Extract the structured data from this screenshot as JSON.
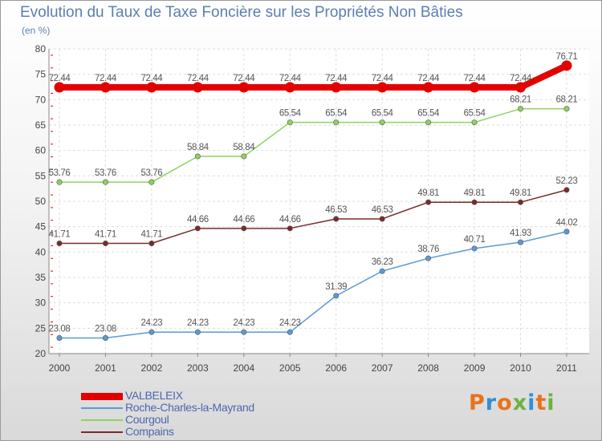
{
  "title": "Evolution du Taux de Taxe Foncière sur les Propriétés Non Bâties",
  "subtitle": "(en %)",
  "logo": {
    "text": "Proxiti",
    "colors": [
      "#e8731a",
      "#2f8fd6",
      "#e8731a",
      "#6cb33f",
      "#2f8fd6",
      "#e8731a",
      "#6cb33f"
    ]
  },
  "chart_data": {
    "type": "line",
    "x": [
      "2000",
      "2001",
      "2002",
      "2003",
      "2004",
      "2005",
      "2006",
      "2007",
      "2008",
      "2009",
      "2010",
      "2011"
    ],
    "ylim": [
      20,
      80
    ],
    "yticks": [
      "20",
      "25",
      "30",
      "35",
      "40",
      "45",
      "50",
      "55",
      "60",
      "65",
      "70",
      "75",
      "80"
    ],
    "grid": true,
    "legend": "bottom-left",
    "series": [
      {
        "name": "VALBELEIX",
        "color": "#e30000",
        "values": [
          72.44,
          72.44,
          72.44,
          72.44,
          72.44,
          72.44,
          72.44,
          72.44,
          72.44,
          72.44,
          72.44,
          76.71
        ],
        "labels": [
          "72.44",
          "72.44",
          "72.44",
          "72.44",
          "72.44",
          "72.44",
          "72.44",
          "72.44",
          "72.44",
          "72.44",
          "72.44",
          "76.71"
        ]
      },
      {
        "name": "Roche-Charles-la-Mayrand",
        "color": "#5a9bd4",
        "values": [
          23.08,
          23.08,
          24.23,
          24.23,
          24.23,
          24.23,
          31.39,
          36.23,
          38.76,
          40.71,
          41.93,
          44.02
        ],
        "labels": [
          "23.08",
          "23.08",
          "24.23",
          "24.23",
          "24.23",
          "24.23",
          "31.39",
          "36.23",
          "38.76",
          "40.71",
          "41.93",
          "44.02"
        ]
      },
      {
        "name": "Courgoul",
        "color": "#8dd35f",
        "values": [
          53.76,
          53.76,
          53.76,
          58.84,
          58.84,
          65.54,
          65.54,
          65.54,
          65.54,
          65.54,
          68.21,
          68.21
        ],
        "labels": [
          "53.76",
          "53.76",
          "53.76",
          "58.84",
          "58.84",
          "65.54",
          "65.54",
          "65.54",
          "65.54",
          "65.54",
          "68.21",
          "68.21"
        ]
      },
      {
        "name": "Compains",
        "color": "#7a2a2a",
        "values": [
          41.71,
          41.71,
          41.71,
          44.66,
          44.66,
          44.66,
          46.53,
          46.53,
          49.81,
          49.81,
          49.81,
          52.23
        ],
        "labels": [
          "41.71",
          "41.71",
          "41.71",
          "44.66",
          "44.66",
          "44.66",
          "46.53",
          "46.53",
          "49.81",
          "49.81",
          "49.81",
          "52.23"
        ]
      }
    ]
  }
}
